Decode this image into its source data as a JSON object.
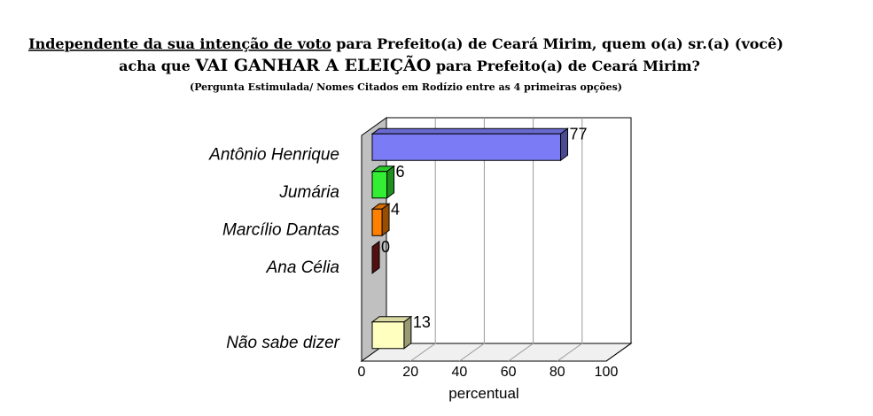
{
  "chart_data": {
    "type": "bar3d_horizontal",
    "title_parts": [
      "Independente da sua intenção de voto",
      " para Prefeito(a) de Ceará Mirim, quem o(a) sr.(a) (você)",
      "acha que ",
      "VAI GANHAR A ELEIÇÃO",
      " para Prefeito(a) de Ceará Mirim?"
    ],
    "subtitle": "(Pergunta Estimulada/ Nomes Citados em Rodízio entre as 4 primeiras opções)",
    "categories": [
      "Antônio Henrique",
      "Jumária",
      "Marcílio Dantas",
      "Ana Célia",
      null,
      "Não sabe dizer"
    ],
    "values": [
      77,
      6,
      4,
      0,
      null,
      13
    ],
    "colors": [
      "#7b7bf5",
      "#33ee33",
      "#ff8000",
      "#8b1a1a",
      null,
      "#ffffc0"
    ],
    "xlim": [
      0,
      100
    ],
    "xticks": [
      0,
      20,
      40,
      60,
      80,
      100
    ],
    "xlabel": "percentual",
    "grid": true
  }
}
